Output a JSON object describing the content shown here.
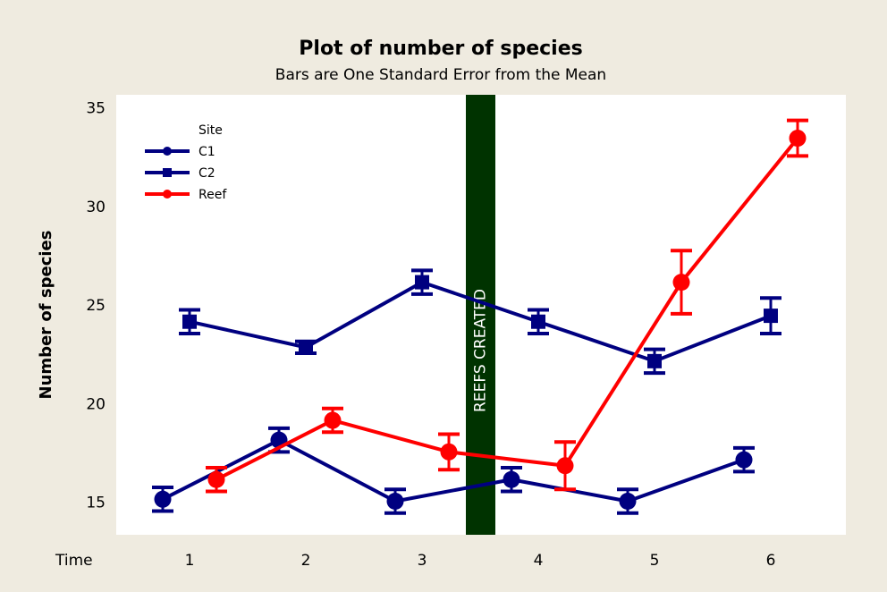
{
  "chart_data": {
    "type": "line",
    "title": "Plot of number of species",
    "subtitle": "Bars are One Standard Error from the Mean",
    "xlabel": "Time",
    "ylabel": "Number of species",
    "categories": [
      1,
      2,
      3,
      4,
      5,
      6
    ],
    "ylim": [
      13.4,
      35.7
    ],
    "yticks": [
      15,
      20,
      25,
      30,
      35
    ],
    "legend": {
      "title": "Site",
      "position": "top-left"
    },
    "annotation": {
      "text": "REEFS CREATED",
      "between": [
        3,
        4
      ],
      "color": "#003300"
    },
    "series": [
      {
        "name": "C1",
        "marker": "circle",
        "color": "#000080",
        "values": [
          15.2,
          18.2,
          15.1,
          16.2,
          15.1,
          17.2
        ],
        "errors": [
          0.6,
          0.6,
          0.6,
          0.6,
          0.6,
          0.6
        ]
      },
      {
        "name": "C2",
        "marker": "square",
        "color": "#000080",
        "values": [
          24.2,
          22.9,
          26.2,
          24.2,
          22.2,
          24.5
        ],
        "errors": [
          0.6,
          0.3,
          0.6,
          0.6,
          0.6,
          0.9
        ]
      },
      {
        "name": "Reef",
        "marker": "circle",
        "color": "#ff0000",
        "values": [
          16.2,
          19.2,
          17.6,
          16.9,
          26.2,
          33.5
        ],
        "errors": [
          0.6,
          0.6,
          0.9,
          1.2,
          1.6,
          0.9
        ]
      }
    ]
  }
}
